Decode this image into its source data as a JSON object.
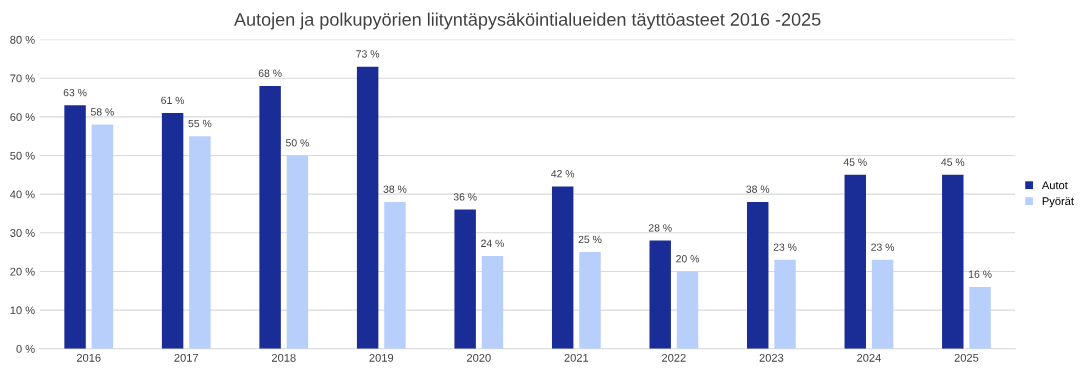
{
  "chart_data": {
    "type": "bar",
    "title": "Autojen ja polkupyörien liityntäpysäköintialueiden täyttöasteet 2016 -2025",
    "categories": [
      "2016",
      "2017",
      "2018",
      "2019",
      "2020",
      "2021",
      "2022",
      "2023",
      "2024",
      "2025"
    ],
    "series": [
      {
        "name": "Autot",
        "color": "#1a2d96",
        "values": [
          63,
          61,
          68,
          73,
          36,
          42,
          28,
          38,
          45,
          45
        ],
        "value_labels": [
          "63 %",
          "61 %",
          "68 %",
          "73 %",
          "36 %",
          "42 %",
          "28 %",
          "38 %",
          "45 %",
          "45 %"
        ]
      },
      {
        "name": "Pyörät",
        "color": "#b8cffc",
        "values": [
          58,
          55,
          50,
          38,
          24,
          25,
          20,
          23,
          23,
          16
        ],
        "value_labels": [
          "58 %",
          "55 %",
          "50 %",
          "38 %",
          "24 %",
          "25 %",
          "20 %",
          "23 %",
          "23 %",
          "16 %"
        ]
      }
    ],
    "ylim": [
      0,
      80
    ],
    "yticks": [
      {
        "value": 0,
        "label": "0 %"
      },
      {
        "value": 10,
        "label": "10 %"
      },
      {
        "value": 20,
        "label": "20 %"
      },
      {
        "value": 30,
        "label": "30 %"
      },
      {
        "value": 40,
        "label": "40 %"
      },
      {
        "value": 50,
        "label": "50 %"
      },
      {
        "value": 60,
        "label": "60 %"
      },
      {
        "value": 70,
        "label": "70 %"
      },
      {
        "value": 80,
        "label": "80 %"
      }
    ],
    "grid": "y",
    "legend": "right"
  }
}
